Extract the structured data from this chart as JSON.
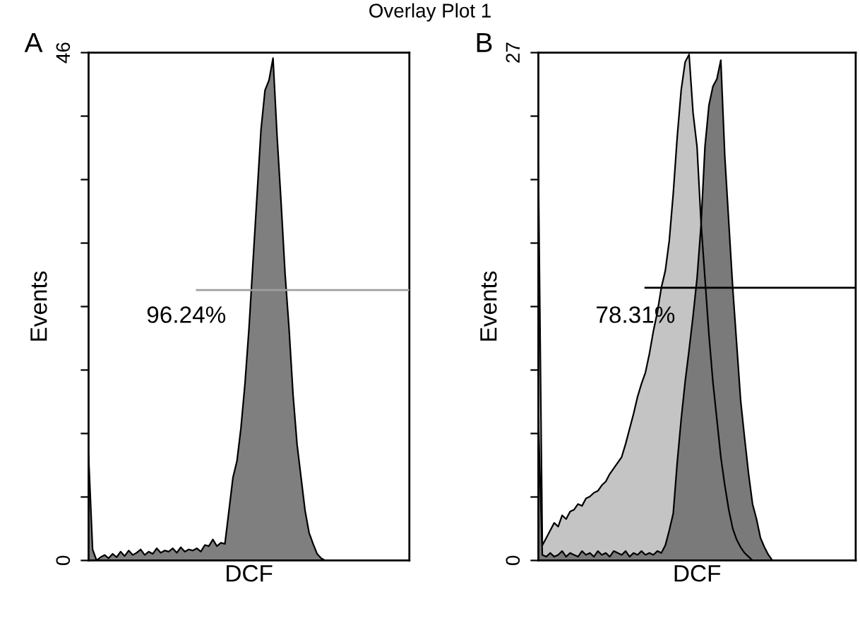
{
  "chart_data": [
    {
      "type": "area",
      "title": "Overlay Plot 1",
      "xlabel": "DCF",
      "ylabel": "Events",
      "annotations": [
        "A",
        "96.24%"
      ],
      "categories": [
        null,
        null,
        null,
        null,
        null,
        null,
        null,
        null,
        null,
        null,
        null,
        null,
        null,
        null,
        null,
        null,
        null,
        null,
        null,
        null,
        null,
        null,
        null,
        null,
        null,
        null,
        null,
        null,
        null,
        null,
        null,
        null,
        null,
        null,
        null,
        null,
        null,
        null,
        null,
        null,
        null,
        null,
        null,
        null,
        null,
        null,
        null,
        null,
        null,
        null,
        null,
        null,
        null,
        null,
        null,
        null,
        null,
        null,
        null,
        null,
        null,
        null,
        null,
        null,
        null,
        null,
        null,
        null,
        null,
        null,
        null,
        null,
        null,
        null,
        null,
        null,
        null,
        null,
        null,
        null,
        null
      ],
      "series": [
        {
          "color": "#7f7f7f",
          "values": [
            9.5,
            1.0,
            0,
            0.3,
            0.5,
            0.2,
            0.6,
            0.3,
            0.8,
            0.4,
            0.9,
            0.5,
            0.7,
            1.0,
            0.5,
            0.8,
            0.6,
            1.1,
            0.7,
            0.9,
            0.8,
            1.1,
            0.7,
            1.2,
            0.8,
            1.0,
            0.9,
            1.1,
            0.8,
            1.4,
            1.3,
            1.9,
            1.3,
            1.6,
            1.5,
            4.5,
            7.5,
            9,
            12,
            16,
            21,
            27,
            33,
            39,
            42.6,
            43.5,
            45.5,
            38.5,
            32.5,
            26,
            21,
            15,
            10.5,
            7.5,
            4.5,
            2.5,
            1.5,
            0.6,
            0.2,
            0,
            0,
            0,
            0,
            0,
            0,
            0,
            0,
            0,
            0,
            0,
            0,
            0,
            0,
            0,
            0,
            0,
            0,
            0,
            0,
            0,
            0
          ]
        },
        {
          "type": "line",
          "color": "#a0a0a0",
          "values": [
            null,
            null,
            null,
            null,
            null,
            null,
            null,
            null,
            null,
            null,
            null,
            null,
            null,
            null,
            null,
            null,
            null,
            null,
            null,
            null,
            null,
            null,
            null,
            null,
            null,
            null,
            null,
            24.5,
            24.5,
            24.5,
            24.5,
            24.5,
            24.5,
            24.5,
            24.5,
            24.5,
            24.5,
            24.5,
            24.5,
            24.5,
            24.5,
            24.5,
            24.5,
            24.5,
            24.5,
            24.5,
            24.5,
            24.5,
            24.5,
            24.5,
            24.5,
            24.5,
            24.5,
            24.5,
            24.5,
            24.5,
            24.5,
            24.5,
            24.5,
            24.5,
            24.5,
            24.5,
            24.5,
            24.5,
            24.5,
            24.5,
            24.5,
            24.5,
            24.5,
            24.5,
            24.5,
            24.5,
            24.5,
            24.5,
            24.5,
            24.5,
            24.5,
            24.5,
            24.5,
            24.5,
            24.5
          ]
        }
      ],
      "ylim": [
        0,
        46
      ],
      "yticks": [
        0,
        {
          "value": 5.75,
          "label": null
        },
        {
          "value": 11.5,
          "label": null
        },
        {
          "value": 17.25,
          "label": null
        },
        {
          "value": 23,
          "label": null
        },
        {
          "value": 28.75,
          "label": null
        },
        {
          "value": 34.5,
          "label": null
        },
        {
          "value": 40.25,
          "label": null
        },
        46
      ],
      "tick_labels": "y",
      "grid": false
    },
    {
      "type": "area",
      "xlabel": "DCF",
      "ylabel": "Events",
      "annotations": [
        "B",
        "78.31%"
      ],
      "categories": [
        null,
        null,
        null,
        null,
        null,
        null,
        null,
        null,
        null,
        null,
        null,
        null,
        null,
        null,
        null,
        null,
        null,
        null,
        null,
        null,
        null,
        null,
        null,
        null,
        null,
        null,
        null,
        null,
        null,
        null,
        null,
        null,
        null,
        null,
        null,
        null,
        null,
        null,
        null,
        null,
        null,
        null,
        null,
        null,
        null,
        null,
        null,
        null,
        null,
        null,
        null,
        null,
        null,
        null,
        null,
        null,
        null,
        null,
        null,
        null,
        null,
        null,
        null,
        null,
        null,
        null,
        null,
        null,
        null,
        null,
        null,
        null,
        null,
        null,
        null,
        null,
        null,
        null,
        null,
        null,
        null
      ],
      "series": [
        {
          "color": "#c4c4c4",
          "values": [
            21,
            0.8,
            1.2,
            1.6,
            2,
            1.8,
            2.4,
            2.2,
            2.6,
            2.7,
            3.0,
            2.9,
            3.3,
            3.4,
            3.6,
            3.7,
            4,
            4.2,
            4.6,
            4.9,
            5.2,
            5.5,
            6.2,
            7,
            7.8,
            8.7,
            9.4,
            10,
            11,
            12.2,
            13.2,
            14.5,
            15.4,
            17,
            19.5,
            22.5,
            25,
            26.5,
            26.9,
            23.8,
            22,
            18,
            15,
            12,
            9.5,
            7.5,
            5.5,
            4,
            2.7,
            1.7,
            1.1,
            0.7,
            0.4,
            0.2,
            0,
            0,
            0,
            0,
            0,
            0,
            0,
            0,
            0,
            0,
            0,
            0,
            0,
            0,
            0,
            0,
            0,
            0,
            0,
            0,
            0,
            0,
            0,
            0,
            0,
            0,
            0
          ]
        },
        {
          "color": "#7a7a7a",
          "values": [
            7.5,
            0.3,
            0.2,
            0.4,
            0.2,
            0.3,
            0.5,
            0.2,
            0.4,
            0.3,
            0.2,
            0.5,
            0.3,
            0.4,
            0.2,
            0.5,
            0.3,
            0.4,
            0.2,
            0.5,
            0.4,
            0.3,
            0.5,
            0.2,
            0.4,
            0.3,
            0.5,
            0.3,
            0.4,
            0.3,
            0.5,
            0.4,
            0.8,
            1.6,
            2.5,
            5.2,
            7.5,
            9.5,
            11.2,
            13,
            15,
            17.8,
            22,
            24.2,
            25.2,
            25.6,
            26.6,
            21.5,
            18,
            14.5,
            11.5,
            8.5,
            6.5,
            4.6,
            3,
            2.2,
            1.2,
            0.7,
            0.3,
            0,
            0,
            0,
            0,
            0,
            0,
            0,
            0,
            0,
            0,
            0,
            0,
            0,
            0,
            0,
            0,
            0,
            0,
            0,
            0,
            0,
            0
          ]
        },
        {
          "type": "line",
          "color": "#000000",
          "values": [
            null,
            null,
            null,
            null,
            null,
            null,
            null,
            null,
            null,
            null,
            null,
            null,
            null,
            null,
            null,
            null,
            null,
            null,
            null,
            null,
            null,
            null,
            null,
            null,
            null,
            null,
            null,
            14.5,
            14.5,
            14.5,
            14.5,
            14.5,
            14.5,
            14.5,
            14.5,
            14.5,
            14.5,
            14.5,
            14.5,
            14.5,
            14.5,
            14.5,
            14.5,
            14.5,
            14.5,
            14.5,
            14.5,
            14.5,
            14.5,
            14.5,
            14.5,
            14.5,
            14.5,
            14.5,
            14.5,
            14.5,
            14.5,
            14.5,
            14.5,
            14.5,
            14.5,
            14.5,
            14.5,
            14.5,
            14.5,
            14.5,
            14.5,
            14.5,
            14.5,
            14.5,
            14.5,
            14.5,
            14.5,
            14.5,
            14.5,
            14.5,
            14.5,
            14.5,
            14.5,
            14.5,
            14.5
          ]
        }
      ],
      "ylim": [
        0,
        27
      ],
      "yticks": [
        0,
        {
          "value": 3.375,
          "label": null
        },
        {
          "value": 6.75,
          "label": null
        },
        {
          "value": 10.125,
          "label": null
        },
        {
          "value": 13.5,
          "label": null
        },
        {
          "value": 16.875,
          "label": null
        },
        {
          "value": 20.25,
          "label": null
        },
        {
          "value": 23.625,
          "label": null
        },
        27
      ],
      "tick_labels": "y",
      "grid": false
    }
  ]
}
